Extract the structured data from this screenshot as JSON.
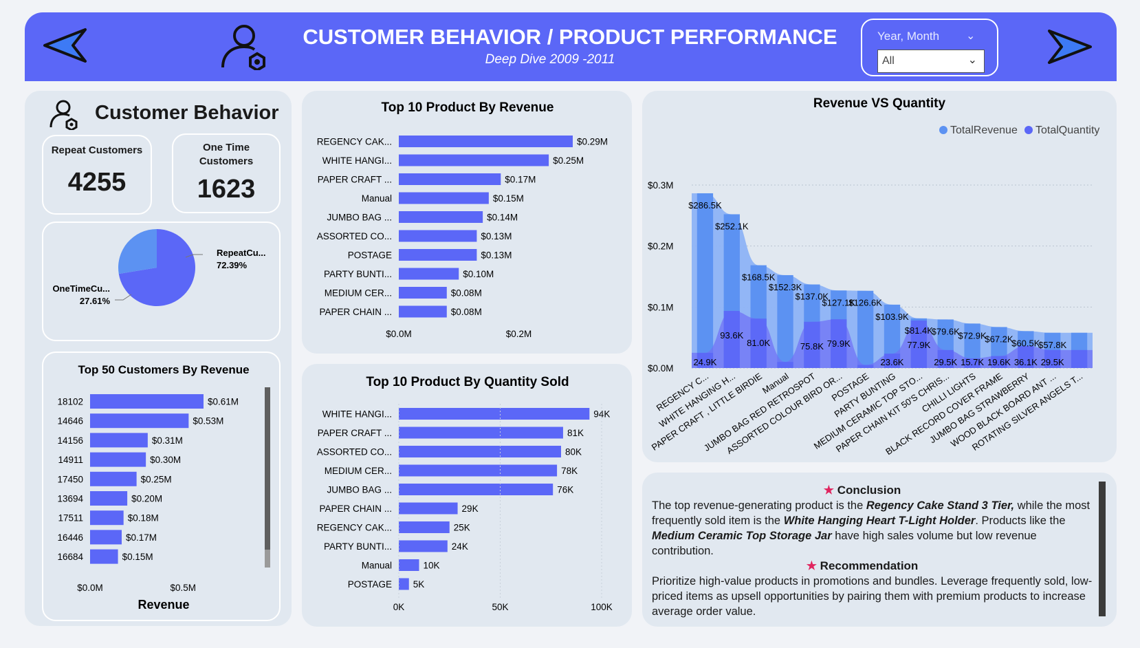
{
  "header": {
    "title": "CUSTOMER BEHAVIOR / PRODUCT PERFORMANCE",
    "subtitle": "Deep Dive 2009 -2011",
    "slicer_label": "Year, Month",
    "slicer_value": "All"
  },
  "customer_behavior": {
    "title": "Customer Behavior",
    "repeat_label": "Repeat Customers",
    "repeat_value": "4255",
    "onetime_label_line1": "One Time",
    "onetime_label_line2": "Customers",
    "onetime_value": "1623",
    "pie": {
      "repeat_label": "RepeatCu...",
      "repeat_pct": "72.39%",
      "onetime_label": "OneTimeCu...",
      "onetime_pct": "27.61%",
      "repeat_share": 72.39,
      "colors": {
        "repeat": "#5b67f7",
        "onetime": "#5c92f2"
      }
    }
  },
  "chart_data": [
    {
      "type": "bar",
      "title": "Top 50 Customers By Revenue",
      "xlabel": "Revenue",
      "categories": [
        "18102",
        "14646",
        "14156",
        "14911",
        "17450",
        "13694",
        "17511",
        "16446",
        "16684"
      ],
      "values": [
        0.61,
        0.53,
        0.31,
        0.3,
        0.25,
        0.2,
        0.18,
        0.17,
        0.15
      ],
      "labels": [
        "$0.61M",
        "$0.53M",
        "$0.31M",
        "$0.30M",
        "$0.25M",
        "$0.20M",
        "$0.18M",
        "$0.17M",
        "$0.15M"
      ],
      "xticks": [
        "$0.0M",
        "$0.5M"
      ],
      "xtick_values": [
        0,
        0.5
      ],
      "xlim": [
        0,
        0.61
      ]
    },
    {
      "type": "bar",
      "title": "Top 10 Product By Revenue",
      "categories": [
        "REGENCY CAK...",
        "WHITE HANGI...",
        "PAPER CRAFT ...",
        "Manual",
        "JUMBO BAG ...",
        "ASSORTED CO...",
        "POSTAGE",
        "PARTY BUNTI...",
        "MEDIUM CER...",
        "PAPER CHAIN ..."
      ],
      "values": [
        0.29,
        0.25,
        0.17,
        0.15,
        0.14,
        0.13,
        0.13,
        0.1,
        0.08,
        0.08
      ],
      "labels": [
        "$0.29M",
        "$0.25M",
        "$0.17M",
        "$0.15M",
        "$0.14M",
        "$0.13M",
        "$0.13M",
        "$0.10M",
        "$0.08M",
        "$0.08M"
      ],
      "xticks": [
        "$0.0M",
        "$0.2M"
      ],
      "xtick_values": [
        0,
        0.2
      ],
      "xlim": [
        0,
        0.29
      ]
    },
    {
      "type": "bar",
      "title": "Top 10 Product By Quantity Sold",
      "categories": [
        "WHITE HANGI...",
        "PAPER CRAFT ...",
        "ASSORTED CO...",
        "MEDIUM CER...",
        "JUMBO BAG ...",
        "PAPER CHAIN ...",
        "REGENCY CAK...",
        "PARTY BUNTI...",
        "Manual",
        "POSTAGE"
      ],
      "values": [
        94,
        81,
        80,
        78,
        76,
        29,
        25,
        24,
        10,
        5
      ],
      "labels": [
        "94K",
        "81K",
        "80K",
        "78K",
        "76K",
        "29K",
        "25K",
        "24K",
        "10K",
        "5K"
      ],
      "xticks": [
        "0K",
        "50K",
        "100K"
      ],
      "xtick_values": [
        0,
        50,
        100
      ],
      "xlim": [
        0,
        100
      ]
    },
    {
      "type": "area",
      "title": "Revenue VS Quantity",
      "legend": [
        "TotalRevenue",
        "TotalQuantity"
      ],
      "legend_position": "top-right",
      "categories": [
        "REGENCY C...",
        "WHITE HANGING H...",
        "PAPER CRAFT , LITTLE BIRDIE",
        "Manual",
        "JUMBO BAG RED RETROSPOT",
        "ASSORTED COLOUR BIRD OR...",
        "POSTAGE",
        "PARTY BUNTING",
        "MEDIUM CERAMIC TOP STO...",
        "PAPER CHAIN KIT 50'S CHRIS...",
        "CHILLI LIGHTS",
        "BLACK RECORD COVER FRAME",
        "JUMBO BAG STRAWBERRY",
        "WOOD BLACK BOARD ANT ...",
        "ROTATING SILVER ANGELS T..."
      ],
      "series": [
        {
          "name": "TotalRevenue",
          "color": "#5c92f2",
          "values": [
            286.5,
            252.1,
            168.5,
            152.3,
            137.0,
            127.1,
            126.6,
            103.9,
            81.4,
            79.6,
            72.9,
            67.2,
            60.5,
            57.8,
            57.8
          ],
          "labels": [
            "$286.5K",
            "$252.1K",
            "$168.5K",
            "$152.3K",
            "$137.0K",
            "$127.1K",
            "$126.6K",
            "$103.9K",
            "$81.4K",
            "$79.6K",
            "$72.9K",
            "$67.2K",
            "$60.5K",
            "$57.8K",
            ""
          ]
        },
        {
          "name": "TotalQuantity",
          "color": "#5b67f7",
          "values": [
            24.9,
            93.6,
            81.0,
            10,
            75.8,
            79.9,
            5,
            23.6,
            77.9,
            29.5,
            15.7,
            19.6,
            36.1,
            29.5,
            29.5
          ],
          "labels": [
            "24.9K",
            "93.6K",
            "81.0K",
            "",
            "75.8K",
            "79.9K",
            "",
            "23.6K",
            "77.9K",
            "29.5K",
            "15.7K",
            "19.6K",
            "36.1K",
            "29.5K",
            ""
          ]
        }
      ],
      "yticks": [
        "$0.0M",
        "$0.1M",
        "$0.2M",
        "$0.3M"
      ],
      "ytick_values": [
        0,
        100,
        200,
        300
      ],
      "ylim": [
        0,
        300
      ],
      "grid": true
    }
  ],
  "conclusion": {
    "title": "Conclusion",
    "p1_a": "The top revenue-generating product is the ",
    "p1_b": "Regency Cake Stand 3 Tier,",
    "p1_c": " while the most frequently sold item is the ",
    "p1_d": "White Hanging Heart T-Light Holder",
    "p1_e": ". Products like the ",
    "p1_f": "Medium Ceramic Top Storage Jar",
    "p1_g": " have high sales volume but low revenue contribution.",
    "rec_title": "Recommendation",
    "p2": "Prioritize high-value products in promotions and bundles. Leverage frequently sold, low-priced items as upsell opportunities by pairing them with premium products to increase average order value."
  }
}
